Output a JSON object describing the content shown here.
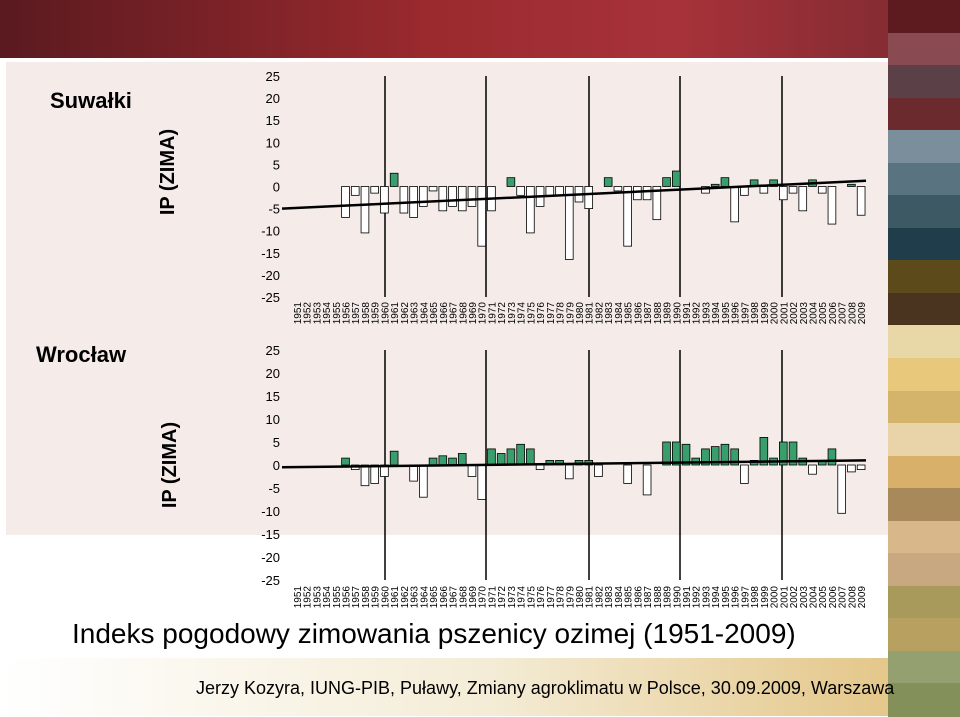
{
  "slide": {
    "title": "Indeks pogodowy zimowania pszenicy ozimej (1951-2009)",
    "footer": "Jerzy Kozyra, IUNG-PIB, Puławy, Zmiany agroklimatu w Polsce, 30.09.2009, Warszawa",
    "colors": {
      "bar_positive": "#3a9e6c",
      "bar_negative": "#ffffff",
      "bar_stroke": "#000000",
      "chart_background": "#f5ecea",
      "side_stripes": [
        "#5d1a1f",
        "#8a4a52",
        "#5b4048",
        "#6a2a2e",
        "#7a8f9b",
        "#5a7380",
        "#3d5a64",
        "#1f3d4a",
        "#5c4a1a",
        "#4a3420",
        "#e8d8a8",
        "#e8c87a",
        "#d4b46a",
        "#e8d4a8",
        "#d8b06a",
        "#a88a5a",
        "#d8b88a",
        "#c8a880",
        "#a89a5a",
        "#b8a060",
        "#94a070",
        "#84905a"
      ]
    }
  },
  "chart_data": [
    {
      "type": "bar",
      "station": "Suwałki",
      "ylabel": "IP (ZIMA)",
      "ylim": [
        -25,
        25
      ],
      "yticks": [
        25,
        20,
        15,
        10,
        5,
        0,
        -5,
        -10,
        -15,
        -20,
        -25
      ],
      "categories": [
        "1951",
        "1952",
        "1953",
        "1954",
        "1955",
        "1956",
        "1957",
        "1958",
        "1959",
        "1960",
        "1961",
        "1962",
        "1963",
        "1964",
        "1965",
        "1966",
        "1967",
        "1968",
        "1969",
        "1970",
        "1971",
        "1972",
        "1973",
        "1974",
        "1975",
        "1976",
        "1977",
        "1978",
        "1979",
        "1980",
        "1981",
        "1982",
        "1983",
        "1984",
        "1985",
        "1986",
        "1987",
        "1988",
        "1989",
        "1990",
        "1991",
        "1992",
        "1993",
        "1994",
        "1995",
        "1996",
        "1997",
        "1998",
        "1999",
        "2000",
        "2001",
        "2002",
        "2003",
        "2004",
        "2005",
        "2006",
        "2007",
        "2008",
        "2009"
      ],
      "values": [
        0,
        0,
        0,
        0,
        0,
        -7,
        -2,
        -10.5,
        -1.5,
        -6,
        3,
        -6,
        -7,
        -4.5,
        -1,
        -5.5,
        -4.5,
        -5.5,
        -4.5,
        -13.5,
        -5.5,
        0,
        2,
        -2,
        -10.5,
        -4.5,
        -2,
        -2,
        -16.5,
        -3.5,
        -5,
        0,
        2,
        -1,
        -13.5,
        -3,
        -3,
        -7.5,
        2,
        3.5,
        0,
        0,
        -1.5,
        0.5,
        2,
        -8,
        -2,
        1.5,
        -1.5,
        1.5,
        -3,
        -1.5,
        -5.5,
        1.5,
        -1.5,
        -8.5,
        0,
        0.5,
        -6.5
      ],
      "trend": [
        -5,
        1.3
      ]
    },
    {
      "type": "bar",
      "station": "Wrocław",
      "ylabel": "IP (ZIMA)",
      "ylim": [
        -25,
        25
      ],
      "yticks": [
        25,
        20,
        15,
        10,
        5,
        0,
        -5,
        -10,
        -15,
        -20,
        -25
      ],
      "categories": [
        "1951",
        "1952",
        "1953",
        "1954",
        "1955",
        "1956",
        "1957",
        "1958",
        "1959",
        "1960",
        "1961",
        "1962",
        "1963",
        "1964",
        "1965",
        "1966",
        "1967",
        "1968",
        "1969",
        "1970",
        "1971",
        "1972",
        "1973",
        "1974",
        "1975",
        "1976",
        "1977",
        "1978",
        "1979",
        "1980",
        "1981",
        "1982",
        "1983",
        "1984",
        "1985",
        "1986",
        "1987",
        "1988",
        "1989",
        "1990",
        "1991",
        "1992",
        "1993",
        "1994",
        "1995",
        "1996",
        "1997",
        "1998",
        "1999",
        "2000",
        "2001",
        "2002",
        "2003",
        "2004",
        "2005",
        "2006",
        "2007",
        "2008",
        "2009"
      ],
      "values": [
        0,
        0,
        0,
        0,
        0,
        1.5,
        -1,
        -4.5,
        -4,
        -2.5,
        3,
        0,
        -3.5,
        -7,
        1.5,
        2,
        1.5,
        2.5,
        -2.5,
        -7.5,
        3.5,
        2.5,
        3.5,
        4.5,
        3.5,
        -1,
        1,
        1,
        -3,
        1,
        1,
        -2.5,
        0,
        0,
        -4,
        0,
        -6.5,
        0,
        5,
        5,
        4.5,
        1.5,
        3.5,
        4,
        4.5,
        3.5,
        -4,
        1,
        6,
        1.5,
        5,
        5,
        1.5,
        -2,
        1,
        3.5,
        -10.5,
        -1.5,
        -1
      ],
      "trend": [
        -0.5,
        1
      ]
    }
  ]
}
